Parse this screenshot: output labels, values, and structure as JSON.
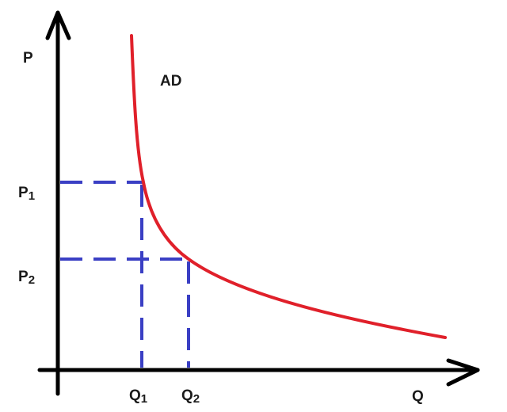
{
  "labels": {
    "price_axis": "P",
    "quantity_axis": "Q",
    "curve": "AD",
    "p1": {
      "main": "P",
      "sub": "1"
    },
    "p2": {
      "main": "P",
      "sub": "2"
    },
    "q1": {
      "main": "Q",
      "sub": "1"
    },
    "q2": {
      "main": "Q",
      "sub": "2"
    }
  },
  "colors": {
    "axis": "#000000",
    "curve": "#e0202a",
    "guides": "#3a3fc4",
    "text": "#1a1a1a"
  }
}
